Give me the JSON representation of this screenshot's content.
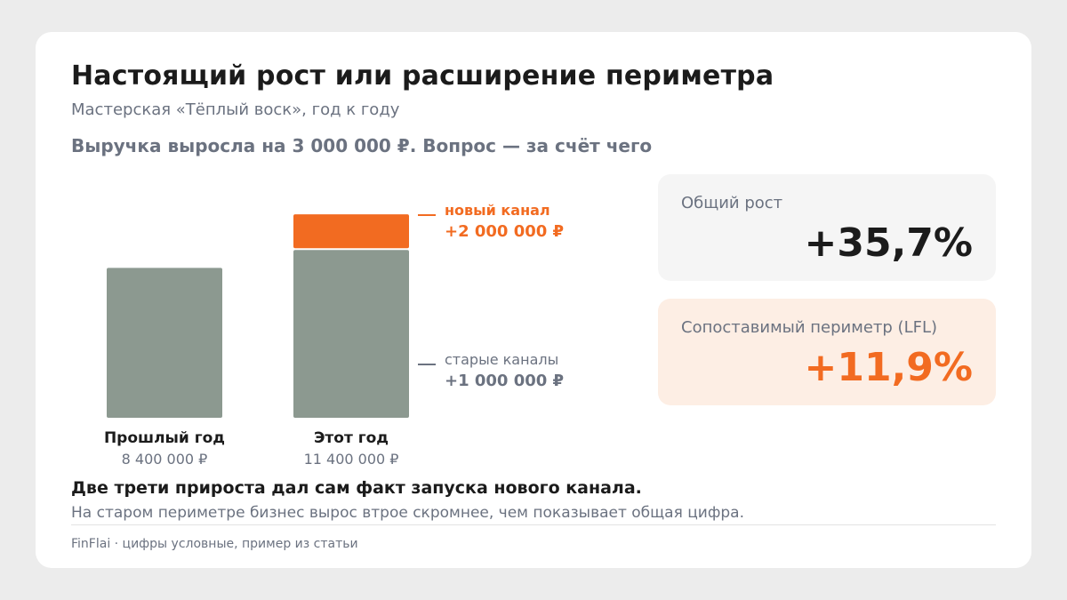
{
  "header": {
    "title": "Настоящий рост или расширение периметра",
    "subtitle": "Мастерская «Тёплый воск», год к году",
    "question": "Выручка выросла на 3 000 000 ₽. Вопрос — за счёт чего"
  },
  "chart_data": {
    "type": "bar",
    "stacked": true,
    "categories": [
      "Прошлый год",
      "Этот год"
    ],
    "category_value_labels": [
      "8 400 000 ₽",
      "11 400 000 ₽"
    ],
    "series": [
      {
        "name": "старые каналы",
        "values": [
          8400000,
          9400000
        ],
        "color": "#8c9990",
        "annotation_value": "+1 000 000 ₽"
      },
      {
        "name": "новый канал",
        "values": [
          0,
          2000000
        ],
        "color": "#f26b21",
        "annotation_value": "+2 000 000 ₽"
      }
    ],
    "ylim": [
      0,
      12700000
    ]
  },
  "kpis": [
    {
      "label": "Общий рост",
      "value": "+35,7%",
      "color": "#1b1b1b"
    },
    {
      "label": "Сопоставимый периметр (LFL)",
      "value": "+11,9%",
      "color": "#f26b21"
    }
  ],
  "conclusion": {
    "main": "Две трети прироста дал сам факт запуска нового канала.",
    "sub": "На старом периметре бизнес вырос втрое скромнее, чем показывает общая цифра."
  },
  "footer": "FinFlai · цифры условные, пример из статьи",
  "colors": {
    "accent": "#f26b21",
    "old_channels": "#8c9990",
    "text_dark": "#1b1b1b",
    "text_muted": "#6b7280"
  }
}
